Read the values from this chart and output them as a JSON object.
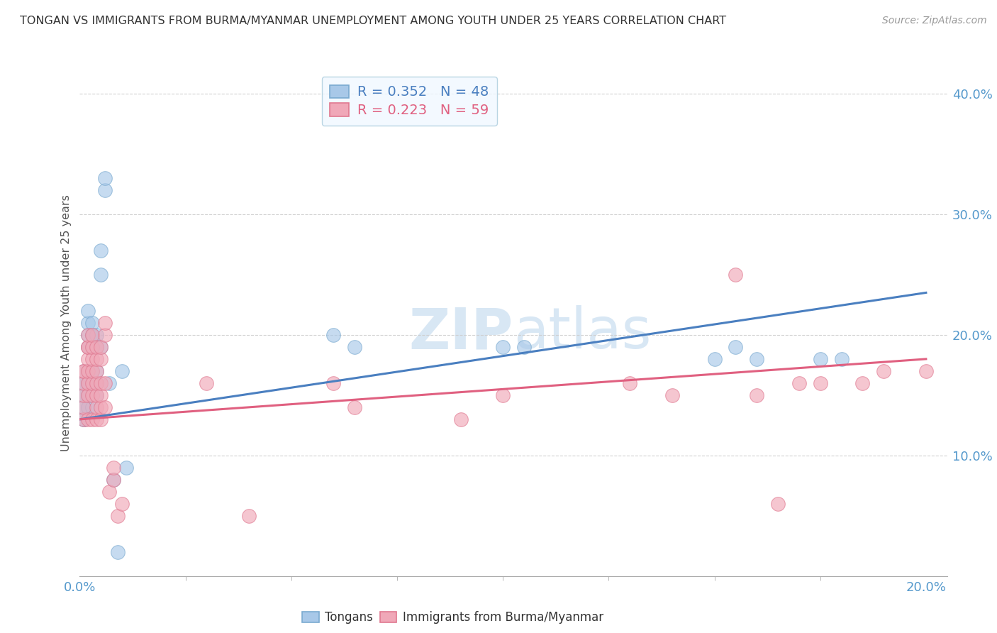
{
  "title": "TONGAN VS IMMIGRANTS FROM BURMA/MYANMAR UNEMPLOYMENT AMONG YOUTH UNDER 25 YEARS CORRELATION CHART",
  "source": "Source: ZipAtlas.com",
  "ylabel": "Unemployment Among Youth under 25 years",
  "legend1_r": "R = 0.352",
  "legend1_n": "N = 48",
  "legend2_r": "R = 0.223",
  "legend2_n": "N = 59",
  "tongan_color": "#a8c8e8",
  "burma_color": "#f0a8b8",
  "tongan_edge_color": "#7aaad0",
  "burma_edge_color": "#e07890",
  "tongan_line_color": "#4a7fc0",
  "burma_line_color": "#e06080",
  "watermark_color": "#c8ddf0",
  "tongan_scatter": [
    [
      0.001,
      0.13
    ],
    [
      0.001,
      0.14
    ],
    [
      0.001,
      0.14
    ],
    [
      0.001,
      0.15
    ],
    [
      0.001,
      0.15
    ],
    [
      0.001,
      0.16
    ],
    [
      0.001,
      0.16
    ],
    [
      0.001,
      0.17
    ],
    [
      0.001,
      0.13
    ],
    [
      0.002,
      0.14
    ],
    [
      0.002,
      0.15
    ],
    [
      0.002,
      0.16
    ],
    [
      0.002,
      0.17
    ],
    [
      0.002,
      0.19
    ],
    [
      0.002,
      0.2
    ],
    [
      0.002,
      0.21
    ],
    [
      0.002,
      0.22
    ],
    [
      0.003,
      0.14
    ],
    [
      0.003,
      0.16
    ],
    [
      0.003,
      0.17
    ],
    [
      0.003,
      0.19
    ],
    [
      0.003,
      0.2
    ],
    [
      0.003,
      0.2
    ],
    [
      0.003,
      0.21
    ],
    [
      0.004,
      0.15
    ],
    [
      0.004,
      0.16
    ],
    [
      0.004,
      0.17
    ],
    [
      0.004,
      0.19
    ],
    [
      0.004,
      0.2
    ],
    [
      0.005,
      0.25
    ],
    [
      0.005,
      0.27
    ],
    [
      0.005,
      0.19
    ],
    [
      0.006,
      0.32
    ],
    [
      0.006,
      0.33
    ],
    [
      0.007,
      0.16
    ],
    [
      0.008,
      0.08
    ],
    [
      0.009,
      0.02
    ],
    [
      0.01,
      0.17
    ],
    [
      0.011,
      0.09
    ],
    [
      0.06,
      0.2
    ],
    [
      0.065,
      0.19
    ],
    [
      0.1,
      0.19
    ],
    [
      0.105,
      0.19
    ],
    [
      0.15,
      0.18
    ],
    [
      0.155,
      0.19
    ],
    [
      0.16,
      0.18
    ],
    [
      0.175,
      0.18
    ],
    [
      0.18,
      0.18
    ]
  ],
  "burma_scatter": [
    [
      0.001,
      0.13
    ],
    [
      0.001,
      0.14
    ],
    [
      0.001,
      0.15
    ],
    [
      0.001,
      0.16
    ],
    [
      0.001,
      0.17
    ],
    [
      0.001,
      0.17
    ],
    [
      0.002,
      0.13
    ],
    [
      0.002,
      0.15
    ],
    [
      0.002,
      0.16
    ],
    [
      0.002,
      0.17
    ],
    [
      0.002,
      0.18
    ],
    [
      0.002,
      0.19
    ],
    [
      0.002,
      0.19
    ],
    [
      0.002,
      0.2
    ],
    [
      0.003,
      0.13
    ],
    [
      0.003,
      0.15
    ],
    [
      0.003,
      0.16
    ],
    [
      0.003,
      0.17
    ],
    [
      0.003,
      0.18
    ],
    [
      0.003,
      0.19
    ],
    [
      0.003,
      0.2
    ],
    [
      0.004,
      0.13
    ],
    [
      0.004,
      0.14
    ],
    [
      0.004,
      0.15
    ],
    [
      0.004,
      0.16
    ],
    [
      0.004,
      0.17
    ],
    [
      0.004,
      0.18
    ],
    [
      0.004,
      0.19
    ],
    [
      0.005,
      0.13
    ],
    [
      0.005,
      0.14
    ],
    [
      0.005,
      0.15
    ],
    [
      0.005,
      0.16
    ],
    [
      0.005,
      0.18
    ],
    [
      0.005,
      0.19
    ],
    [
      0.006,
      0.14
    ],
    [
      0.006,
      0.16
    ],
    [
      0.006,
      0.2
    ],
    [
      0.006,
      0.21
    ],
    [
      0.007,
      0.07
    ],
    [
      0.008,
      0.08
    ],
    [
      0.008,
      0.09
    ],
    [
      0.009,
      0.05
    ],
    [
      0.01,
      0.06
    ],
    [
      0.03,
      0.16
    ],
    [
      0.04,
      0.05
    ],
    [
      0.06,
      0.16
    ],
    [
      0.065,
      0.14
    ],
    [
      0.09,
      0.13
    ],
    [
      0.1,
      0.15
    ],
    [
      0.13,
      0.16
    ],
    [
      0.14,
      0.15
    ],
    [
      0.155,
      0.25
    ],
    [
      0.16,
      0.15
    ],
    [
      0.165,
      0.06
    ],
    [
      0.17,
      0.16
    ],
    [
      0.175,
      0.16
    ],
    [
      0.185,
      0.16
    ],
    [
      0.19,
      0.17
    ],
    [
      0.2,
      0.17
    ]
  ],
  "tongan_line": [
    0.0,
    0.2,
    0.13,
    0.235
  ],
  "burma_line": [
    0.0,
    0.2,
    0.13,
    0.18
  ],
  "x_min": 0.0,
  "x_max": 0.205,
  "y_min": 0.0,
  "y_max": 0.42,
  "background_color": "#ffffff",
  "grid_color": "#cccccc",
  "title_color": "#333333",
  "axis_label_color": "#555555",
  "tick_color": "#5599cc"
}
